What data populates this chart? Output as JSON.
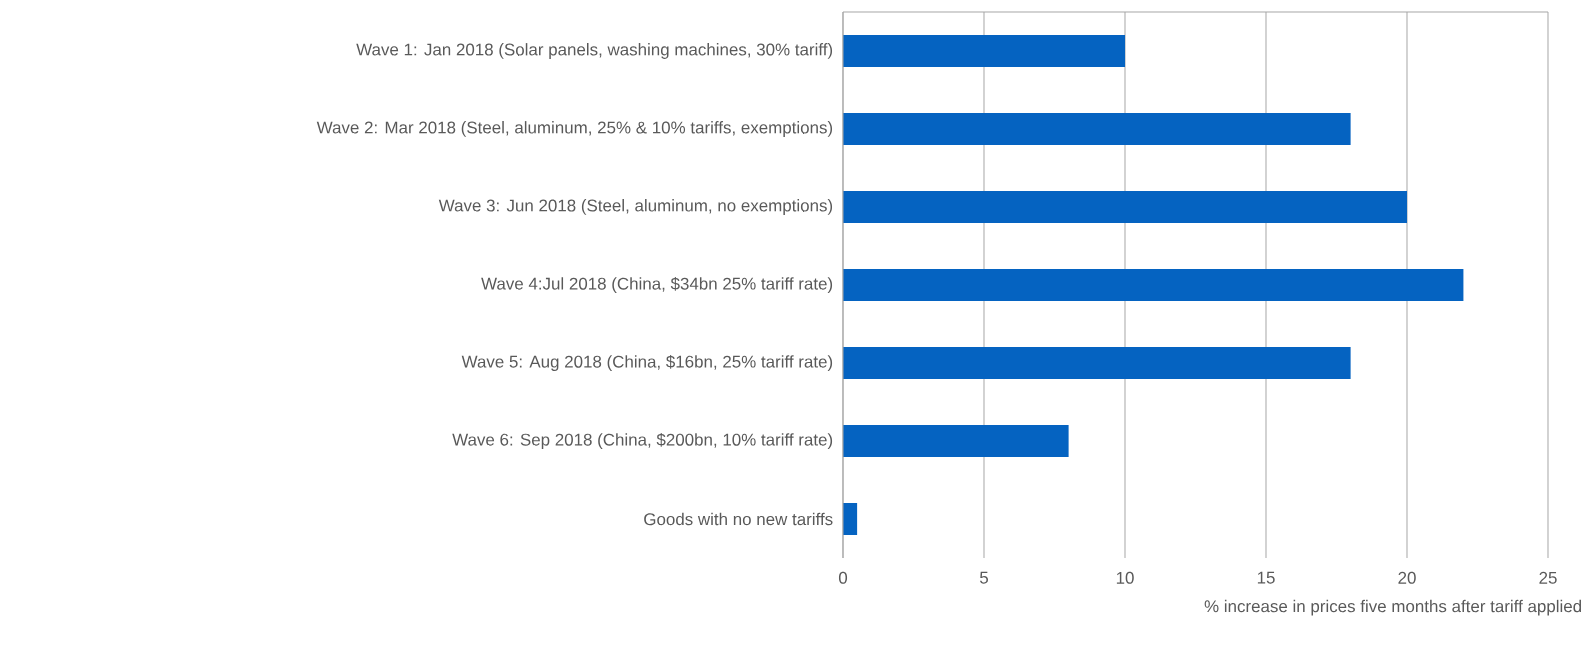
{
  "chart_data": {
    "type": "bar",
    "orientation": "horizontal",
    "categories": [
      "Wave 1: Jan 2018 (Solar panels, washing machines, 30% tariff)",
      "Wave 2: Mar 2018 (Steel, aluminum, 25% & 10% tariffs, exemptions)",
      "Wave 3: Jun 2018 (Steel, aluminum, no  exemptions)",
      "Wave 4:Jul 2018 (China, $34bn 25% tariff rate)",
      "Wave 5: Aug 2018 (China, $16bn, 25% tariff rate)",
      "Wave 6: Sep 2018 (China, $200bn, 10% tariff rate)",
      "Goods with no new tariffs"
    ],
    "values": [
      10,
      18,
      20,
      22,
      18,
      8,
      0.5
    ],
    "color": "#0563c1",
    "xlim": [
      0,
      25
    ],
    "xticks": [
      0,
      5,
      10,
      15,
      20,
      25
    ],
    "xlabel": "% increase in prices five months after tariff applied",
    "grid": "x"
  }
}
